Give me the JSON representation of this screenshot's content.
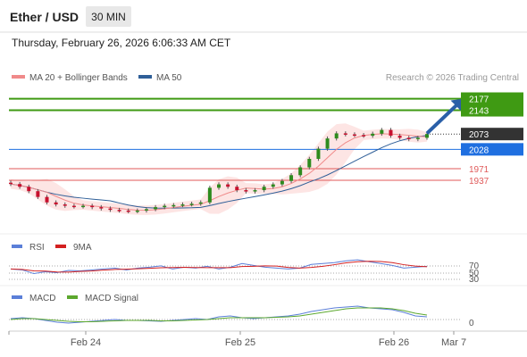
{
  "header": {
    "instrument": "Ether / USD",
    "timeframe": "30 MIN",
    "timestamp": "Thursday, February 26, 2026 6:06:33 AM CET",
    "credit": "Research © 2026 Trading Central"
  },
  "legend": {
    "ma20": "MA 20 + Bollinger Bands",
    "ma50": "MA 50",
    "rsi": "RSI",
    "rsi_ma": "9MA",
    "macd": "MACD",
    "macd_signal": "MACD Signal"
  },
  "colors": {
    "ma20": "#f08a8a",
    "ma50": "#2f5f98",
    "bollinger_fill": "#fde0df",
    "target_green": "#3f9a13",
    "pivot_blue": "#1f6fe0",
    "support_red": "#e05a5a",
    "last_price_bg": "#333333",
    "rsi": "#5b7fd8",
    "rsi_ma": "#d32020",
    "macd": "#5b7fd8",
    "macd_signal": "#5ca82e",
    "candle_up": "#2e8b1e",
    "candle_down": "#c8102e"
  },
  "chart_data": {
    "type": "candlestick",
    "instrument": "Ether / USD",
    "interval": "30 MIN",
    "x_ticks": [
      "Feb 24",
      "Feb 25",
      "Feb 26",
      "Mar 7"
    ],
    "y_range": [
      1790,
      2210
    ],
    "levels": [
      {
        "name": "target-2",
        "value": 2177,
        "label": "2177",
        "style": "green"
      },
      {
        "name": "target-1",
        "value": 2143,
        "label": "2143",
        "style": "green"
      },
      {
        "name": "last-price",
        "value": 2073,
        "label": "2073",
        "style": "dark"
      },
      {
        "name": "pivot",
        "value": 2028,
        "label": "2028",
        "style": "blue"
      },
      {
        "name": "support-1",
        "value": 1971,
        "label": "1971",
        "style": "red"
      },
      {
        "name": "support-2",
        "value": 1937,
        "label": "1937",
        "style": "red"
      }
    ],
    "price": [
      {
        "t": 0,
        "close": 1926
      },
      {
        "t": 4,
        "close": 1918
      },
      {
        "t": 8,
        "close": 1905
      },
      {
        "t": 12,
        "close": 1888
      },
      {
        "t": 16,
        "close": 1872
      },
      {
        "t": 20,
        "close": 1866
      },
      {
        "t": 24,
        "close": 1862
      },
      {
        "t": 28,
        "close": 1860
      },
      {
        "t": 32,
        "close": 1862
      },
      {
        "t": 36,
        "close": 1858
      },
      {
        "t": 40,
        "close": 1854
      },
      {
        "t": 44,
        "close": 1850
      },
      {
        "t": 48,
        "close": 1848
      },
      {
        "t": 52,
        "close": 1846
      },
      {
        "t": 56,
        "close": 1848
      },
      {
        "t": 60,
        "close": 1852
      },
      {
        "t": 64,
        "close": 1858
      },
      {
        "t": 68,
        "close": 1862
      },
      {
        "t": 72,
        "close": 1864
      },
      {
        "t": 76,
        "close": 1866
      },
      {
        "t": 80,
        "close": 1868
      },
      {
        "t": 84,
        "close": 1872
      },
      {
        "t": 88,
        "close": 1915
      },
      {
        "t": 92,
        "close": 1925
      },
      {
        "t": 96,
        "close": 1918
      },
      {
        "t": 100,
        "close": 1908
      },
      {
        "t": 104,
        "close": 1904
      },
      {
        "t": 108,
        "close": 1908
      },
      {
        "t": 112,
        "close": 1918
      },
      {
        "t": 116,
        "close": 1925
      },
      {
        "t": 120,
        "close": 1935
      },
      {
        "t": 124,
        "close": 1952
      },
      {
        "t": 128,
        "close": 1975
      },
      {
        "t": 132,
        "close": 2000
      },
      {
        "t": 136,
        "close": 2030
      },
      {
        "t": 140,
        "close": 2060
      },
      {
        "t": 144,
        "close": 2075
      },
      {
        "t": 148,
        "close": 2072
      },
      {
        "t": 152,
        "close": 2070
      },
      {
        "t": 156,
        "close": 2068
      },
      {
        "t": 160,
        "close": 2074
      },
      {
        "t": 164,
        "close": 2085
      },
      {
        "t": 168,
        "close": 2068
      },
      {
        "t": 172,
        "close": 2062
      },
      {
        "t": 176,
        "close": 2058
      },
      {
        "t": 180,
        "close": 2062
      },
      {
        "t": 184,
        "close": 2073
      }
    ],
    "forecast_arrow": {
      "from": {
        "t": 184,
        "value": 2075
      },
      "to": {
        "t": 200,
        "value": 2177
      }
    },
    "rsi": {
      "levels": [
        "70",
        "50",
        "30"
      ],
      "values": [
        48,
        46,
        38,
        42,
        40,
        45,
        44,
        46,
        48,
        50,
        46,
        50,
        52,
        55,
        48,
        52,
        50,
        54,
        48,
        52,
        60,
        56,
        52,
        50,
        48,
        50,
        58,
        60,
        62,
        66,
        68,
        64,
        60,
        56,
        50,
        52,
        54
      ]
    },
    "macd": {
      "zero_label": "0",
      "macd": [
        2,
        4,
        2,
        -2,
        -6,
        -8,
        -6,
        -4,
        -2,
        0,
        -2,
        -2,
        -3,
        -4,
        -2,
        0,
        2,
        0,
        6,
        8,
        4,
        2,
        4,
        6,
        8,
        12,
        18,
        22,
        26,
        28,
        30,
        26,
        24,
        22,
        16,
        8,
        6
      ],
      "signal": [
        0,
        2,
        2,
        0,
        -2,
        -4,
        -5,
        -5,
        -4,
        -3,
        -2,
        -2,
        -2,
        -3,
        -3,
        -2,
        -1,
        0,
        2,
        4,
        4,
        4,
        4,
        5,
        6,
        8,
        12,
        16,
        20,
        24,
        26,
        26,
        26,
        24,
        20,
        14,
        10
      ]
    }
  }
}
